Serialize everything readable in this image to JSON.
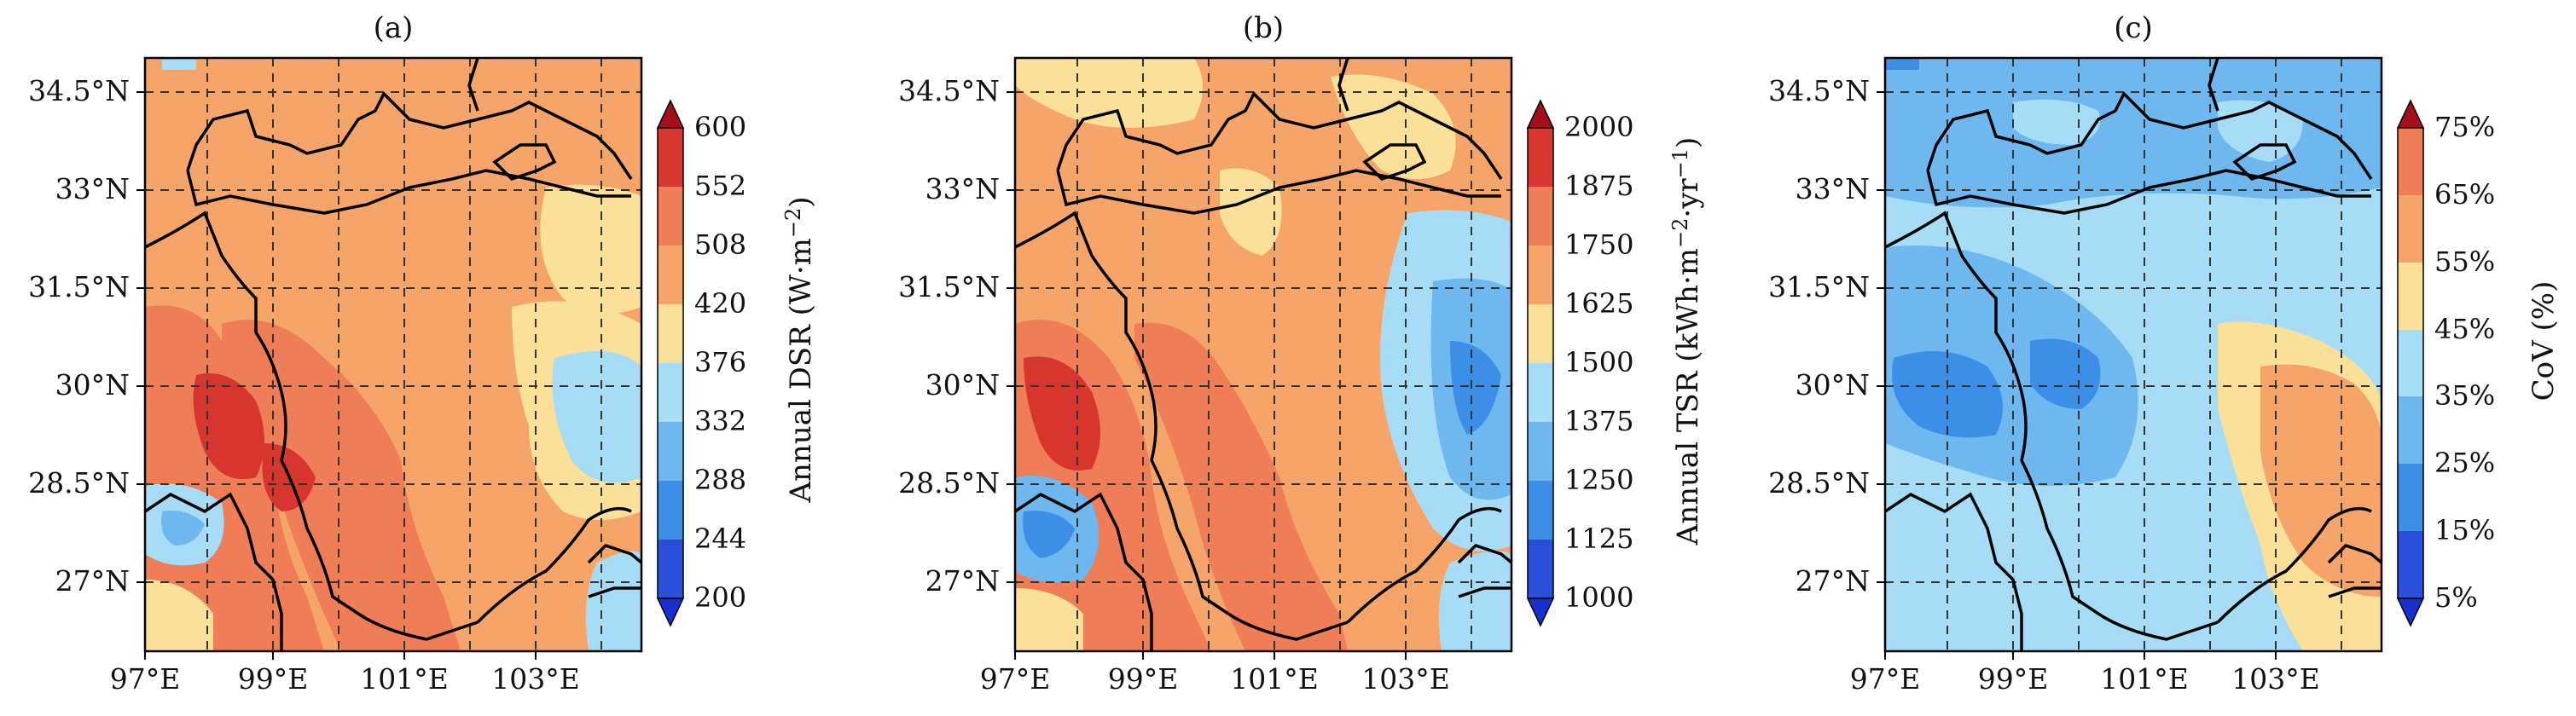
{
  "figure": {
    "panels": [
      {
        "letter": "(a)",
        "colorbar_label": "Annual DSR (W·m",
        "colorbar_label_sup": "−2",
        "colorbar_label_end": ")",
        "colorbar_ticks": [
          "200",
          "244",
          "288",
          "332",
          "376",
          "420",
          "508",
          "552",
          "600"
        ],
        "field": "dsr"
      },
      {
        "letter": "(b)",
        "colorbar_label": "Annual TSR (kWh·m",
        "colorbar_label_sup": "−2",
        "colorbar_label_mid": "·yr",
        "colorbar_label_sup2": "−1",
        "colorbar_label_end": ")",
        "colorbar_ticks": [
          "1000",
          "1125",
          "1250",
          "1375",
          "1500",
          "1625",
          "1750",
          "1875",
          "2000"
        ],
        "field": "tsr"
      },
      {
        "letter": "(c)",
        "colorbar_label": "CoV (%)",
        "colorbar_ticks": [
          "5%",
          "15%",
          "25%",
          "35%",
          "45%",
          "55%",
          "65%",
          "75%"
        ],
        "field": "cov"
      }
    ],
    "lat_labels": [
      "34.5°N",
      "33°N",
      "31.5°N",
      "30°N",
      "28.5°N",
      "27°N"
    ],
    "lon_labels": [
      "97°E",
      "99°E",
      "101°E",
      "103°E"
    ],
    "colors": {
      "dark_blue": "#2b4fd9",
      "blue": "#3d8ee6",
      "sky": "#6fb8ef",
      "light_sky": "#a6dcf5",
      "pale": "#fbe09a",
      "orange": "#f5a46a",
      "salmon": "#ef7d57",
      "red": "#d7362f",
      "dark_red": "#a50f1c",
      "border": "#000000",
      "grid": "#333333"
    }
  }
}
